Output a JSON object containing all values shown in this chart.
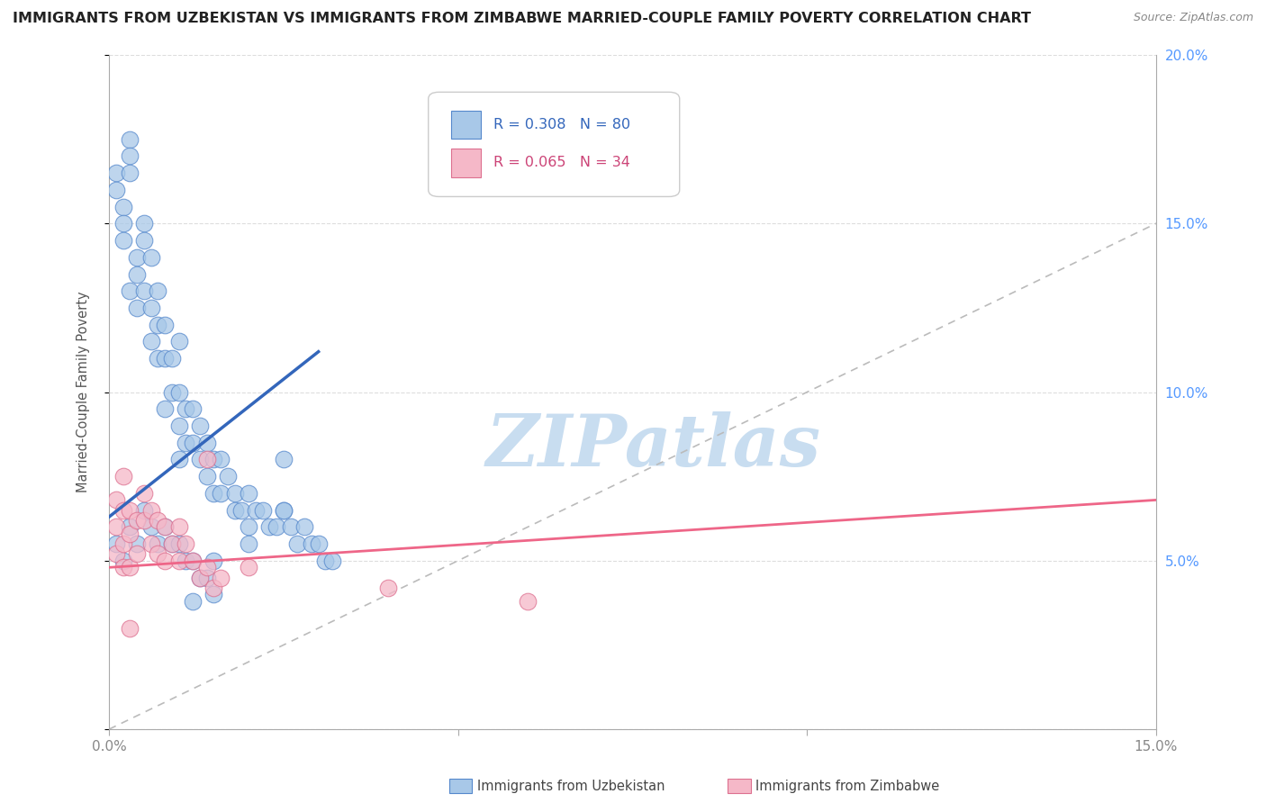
{
  "title": "IMMIGRANTS FROM UZBEKISTAN VS IMMIGRANTS FROM ZIMBABWE MARRIED-COUPLE FAMILY POVERTY CORRELATION CHART",
  "source": "Source: ZipAtlas.com",
  "ylabel": "Married-Couple Family Poverty",
  "xlim": [
    0.0,
    0.15
  ],
  "ylim": [
    0.0,
    0.2
  ],
  "color_uzbekistan_fill": "#a8c8e8",
  "color_uzbekistan_edge": "#5588cc",
  "color_zimbabwe_fill": "#f5b8c8",
  "color_zimbabwe_edge": "#dd7090",
  "color_uzbekistan_line": "#3366bb",
  "color_zimbabwe_line": "#ee6688",
  "color_diag_line": "#bbbbbb",
  "color_grid": "#dddddd",
  "color_ytick": "#5599ff",
  "color_xtick": "#888888",
  "watermark_text": "ZIPatlas",
  "legend_items": [
    {
      "R": "0.308",
      "N": "80",
      "fill": "#a8c8e8",
      "edge": "#5588cc",
      "text_color": "#3366bb"
    },
    {
      "R": "0.065",
      "N": "34",
      "fill": "#f5b8c8",
      "edge": "#dd7090",
      "text_color": "#cc4477"
    }
  ],
  "bottom_legend": [
    {
      "label": "Immigrants from Uzbekistan",
      "fill": "#a8c8e8",
      "edge": "#5588cc"
    },
    {
      "label": "Immigrants from Zimbabwe",
      "fill": "#f5b8c8",
      "edge": "#dd7090"
    }
  ],
  "uz_x": [
    0.001,
    0.001,
    0.002,
    0.002,
    0.002,
    0.003,
    0.003,
    0.003,
    0.003,
    0.004,
    0.004,
    0.004,
    0.005,
    0.005,
    0.005,
    0.006,
    0.006,
    0.006,
    0.007,
    0.007,
    0.007,
    0.008,
    0.008,
    0.008,
    0.009,
    0.009,
    0.01,
    0.01,
    0.01,
    0.01,
    0.011,
    0.011,
    0.012,
    0.012,
    0.013,
    0.013,
    0.014,
    0.014,
    0.015,
    0.015,
    0.016,
    0.016,
    0.017,
    0.018,
    0.018,
    0.019,
    0.02,
    0.02,
    0.021,
    0.022,
    0.023,
    0.024,
    0.025,
    0.026,
    0.027,
    0.028,
    0.029,
    0.03,
    0.031,
    0.032,
    0.001,
    0.002,
    0.003,
    0.004,
    0.005,
    0.006,
    0.007,
    0.008,
    0.009,
    0.01,
    0.011,
    0.012,
    0.013,
    0.014,
    0.015,
    0.02,
    0.025,
    0.025,
    0.015,
    0.012
  ],
  "uz_y": [
    0.165,
    0.16,
    0.155,
    0.15,
    0.145,
    0.175,
    0.17,
    0.165,
    0.13,
    0.14,
    0.135,
    0.125,
    0.15,
    0.145,
    0.13,
    0.14,
    0.125,
    0.115,
    0.13,
    0.12,
    0.11,
    0.12,
    0.11,
    0.095,
    0.11,
    0.1,
    0.115,
    0.1,
    0.09,
    0.08,
    0.095,
    0.085,
    0.095,
    0.085,
    0.09,
    0.08,
    0.085,
    0.075,
    0.08,
    0.07,
    0.08,
    0.07,
    0.075,
    0.07,
    0.065,
    0.065,
    0.07,
    0.06,
    0.065,
    0.065,
    0.06,
    0.06,
    0.065,
    0.06,
    0.055,
    0.06,
    0.055,
    0.055,
    0.05,
    0.05,
    0.055,
    0.05,
    0.06,
    0.055,
    0.065,
    0.06,
    0.055,
    0.06,
    0.055,
    0.055,
    0.05,
    0.05,
    0.045,
    0.045,
    0.05,
    0.055,
    0.08,
    0.065,
    0.04,
    0.038
  ],
  "zim_x": [
    0.001,
    0.001,
    0.001,
    0.002,
    0.002,
    0.002,
    0.002,
    0.003,
    0.003,
    0.003,
    0.004,
    0.004,
    0.005,
    0.005,
    0.006,
    0.006,
    0.007,
    0.007,
    0.008,
    0.008,
    0.009,
    0.01,
    0.01,
    0.011,
    0.012,
    0.013,
    0.014,
    0.015,
    0.016,
    0.02,
    0.04,
    0.06,
    0.014,
    0.003
  ],
  "zim_y": [
    0.068,
    0.06,
    0.052,
    0.075,
    0.065,
    0.055,
    0.048,
    0.065,
    0.058,
    0.048,
    0.062,
    0.052,
    0.07,
    0.062,
    0.065,
    0.055,
    0.062,
    0.052,
    0.06,
    0.05,
    0.055,
    0.06,
    0.05,
    0.055,
    0.05,
    0.045,
    0.048,
    0.042,
    0.045,
    0.048,
    0.042,
    0.038,
    0.08,
    0.03
  ],
  "uz_trend_x": [
    0.0,
    0.03
  ],
  "uz_trend_y": [
    0.063,
    0.112
  ],
  "zim_trend_x": [
    0.0,
    0.15
  ],
  "zim_trend_y": [
    0.048,
    0.068
  ]
}
